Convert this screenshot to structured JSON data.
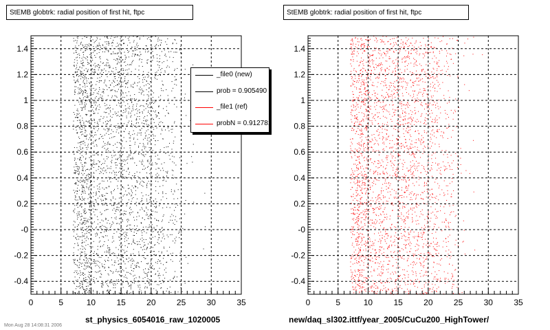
{
  "footer_text": "Mon Aug 28 14:08:31 2006",
  "panels": [
    {
      "title": "StEMB globtrk: radial position of first hit, ftpc",
      "xlabel": "st_physics_6054016_raw_1020005",
      "color": "#000000"
    },
    {
      "title": "StEMB globtrk: radial position of first hit, ftpc",
      "xlabel": "new/daq_sl302.ittf/year_2005/CuCu200_HighTower/",
      "color": "#ff0000"
    }
  ],
  "legend": {
    "entries": [
      {
        "label": "_file0 (new)",
        "color": "#000000"
      },
      {
        "label": "prob = 0.905490",
        "color": "#000000"
      },
      {
        "label": "_file1 (ref)",
        "color": "#ff0000"
      },
      {
        "label": "probN = 0.912781",
        "color": "#ff0000"
      }
    ]
  },
  "chart_data": [
    {
      "type": "scatter",
      "title": "StEMB globtrk: radial position of first hit, ftpc",
      "xlabel": "st_physics_6054016_raw_1020005",
      "ylabel": "",
      "xlim": [
        0,
        35
      ],
      "ylim": [
        -0.5,
        1.5
      ],
      "x_ticks": [
        "0",
        "5",
        "10",
        "15",
        "20",
        "25",
        "30",
        "35"
      ],
      "y_ticks": [
        "-0.4",
        "-0.2",
        "-0",
        "0.2",
        "0.4",
        "0.6",
        "0.8",
        "1",
        "1.2",
        "1.4"
      ],
      "grid": true,
      "marker_color": "#000000",
      "point_density": {
        "x_bins": [
          [
            7,
            8
          ],
          [
            8,
            9
          ],
          [
            9,
            10
          ],
          [
            10,
            15
          ],
          [
            15,
            20
          ],
          [
            20,
            22
          ],
          [
            22,
            24
          ],
          [
            24,
            25
          ],
          [
            25,
            26
          ],
          [
            26,
            30
          ]
        ],
        "relative_density": [
          0.7,
          1.0,
          0.8,
          0.55,
          0.5,
          0.4,
          0.22,
          0.12,
          0.04,
          0.01
        ]
      }
    },
    {
      "type": "scatter",
      "title": "StEMB globtrk: radial position of first hit, ftpc",
      "xlabel": "new/daq_sl302.ittf/year_2005/CuCu200_HighTower/",
      "ylabel": "",
      "xlim": [
        0,
        35
      ],
      "ylim": [
        -0.5,
        1.5
      ],
      "x_ticks": [
        "0",
        "5",
        "10",
        "15",
        "20",
        "25",
        "30",
        "35"
      ],
      "y_ticks": [
        "-0.4",
        "-0.2",
        "-0",
        "0.2",
        "0.4",
        "0.6",
        "0.8",
        "1",
        "1.2",
        "1.4"
      ],
      "grid": true,
      "marker_color": "#ff0000",
      "point_density": {
        "x_bins": [
          [
            7,
            8
          ],
          [
            8,
            9
          ],
          [
            9,
            10
          ],
          [
            10,
            15
          ],
          [
            15,
            20
          ],
          [
            20,
            22
          ],
          [
            22,
            24
          ],
          [
            24,
            25
          ],
          [
            25,
            26
          ],
          [
            26,
            30
          ]
        ],
        "relative_density": [
          0.7,
          1.0,
          0.8,
          0.55,
          0.5,
          0.4,
          0.22,
          0.12,
          0.04,
          0.01
        ]
      }
    }
  ]
}
